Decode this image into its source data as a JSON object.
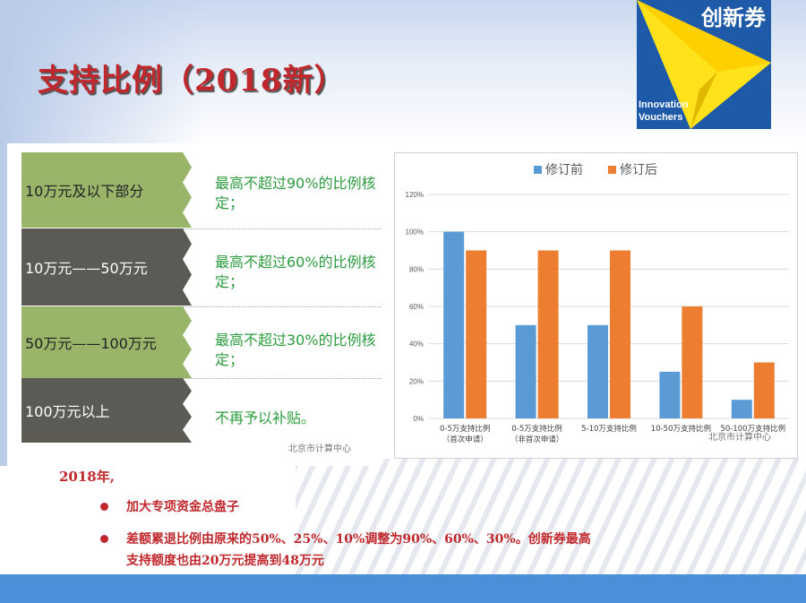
{
  "page": {
    "title": "支持比例（2018新）"
  },
  "logo": {
    "brand": "创新券",
    "en_line1": "Innovation",
    "en_line2": "Vouchers",
    "colors": {
      "bg": "#1e5aa8",
      "plane": "#ffe21a"
    }
  },
  "tiers": [
    {
      "range": "10万元及以下部分",
      "rule": "最高不超过90%的比例核定；",
      "color": "#98b56a"
    },
    {
      "range": "10万元——50万元",
      "rule": "最高不超过60%的比例核定；",
      "color": "#5b5a55"
    },
    {
      "range": "50万元——100万元",
      "rule": "最高不超过30%的比例核定；",
      "color": "#98b56a"
    },
    {
      "range": "100万元以上",
      "rule": "不再予以补贴。",
      "color": "#5b5a55"
    }
  ],
  "watermark": "北京市计算中心",
  "chart_data": {
    "type": "bar",
    "categories": [
      "0-5万支持比例\n（首次申请）",
      "0-5万支持比例\n（非首次申请）",
      "5-10万支持比例",
      "10-50万支持比例",
      "50-100万支持比例"
    ],
    "series": [
      {
        "name": "修订前",
        "color": "#5b9bd5",
        "values": [
          100,
          50,
          50,
          25,
          10
        ]
      },
      {
        "name": "修订后",
        "color": "#ed7d31",
        "values": [
          90,
          90,
          90,
          60,
          30
        ]
      }
    ],
    "ylim": [
      0,
      120
    ],
    "yticks": [
      "0%",
      "20%",
      "40%",
      "60%",
      "80%",
      "100%",
      "120%"
    ],
    "legend_position": "top",
    "grid": true
  },
  "notes": {
    "year": "2018年,",
    "bullets": [
      "加大专项资金总盘子",
      "差额累退比例由原来的50%、25%、10%调整为90%、60%、30%。创新券最高",
      "支持额度也由20万元提高到48万元"
    ]
  }
}
